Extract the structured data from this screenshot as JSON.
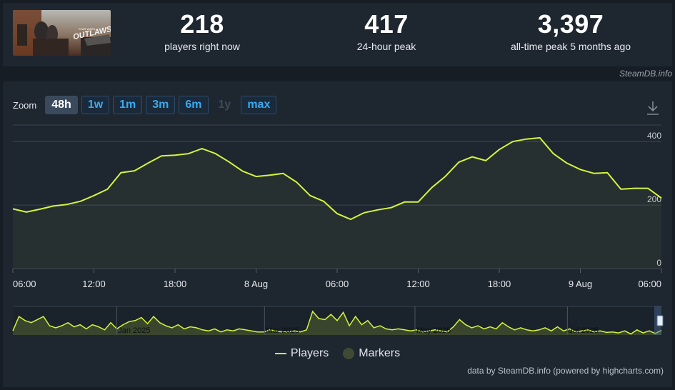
{
  "stats": [
    {
      "value": "218",
      "label": "players right now"
    },
    {
      "value": "417",
      "label": "24-hour peak"
    },
    {
      "value": "3,397",
      "label": "all-time peak 5 months ago"
    }
  ],
  "credit_top": "SteamDB.info",
  "zoom": {
    "label": "Zoom",
    "buttons": [
      {
        "label": "48h",
        "state": "active"
      },
      {
        "label": "1w",
        "state": "normal"
      },
      {
        "label": "1m",
        "state": "normal"
      },
      {
        "label": "3m",
        "state": "normal"
      },
      {
        "label": "6m",
        "state": "normal"
      },
      {
        "label": "1y",
        "state": "disabled"
      },
      {
        "label": "max",
        "state": "normal"
      }
    ]
  },
  "legend": {
    "players": "Players",
    "markers": "Markers"
  },
  "credit_bottom": "data by SteamDB.info (powered by highcharts.com)",
  "colors": {
    "line": "#d4f53c",
    "background": "#1e2630",
    "accent": "#3aaaf0"
  },
  "icons": {
    "download": "download-icon"
  },
  "chart_data": {
    "type": "line",
    "series": [
      {
        "name": "Players",
        "x": [
          0,
          1,
          2,
          3,
          4,
          5,
          6,
          7,
          8,
          9,
          10,
          11,
          12,
          13,
          14,
          15,
          16,
          17,
          18,
          19,
          20,
          21,
          22,
          23,
          24,
          25,
          26,
          27,
          28,
          29,
          30,
          31,
          32,
          33,
          34,
          35,
          36,
          37,
          38,
          39,
          40,
          41,
          42,
          43,
          44,
          45,
          46,
          47,
          48
        ],
        "values": [
          188,
          178,
          187,
          197,
          202,
          212,
          230,
          250,
          302,
          308,
          332,
          355,
          357,
          362,
          378,
          362,
          336,
          307,
          290,
          294,
          300,
          272,
          230,
          212,
          173,
          155,
          176,
          185,
          192,
          210,
          210,
          255,
          290,
          335,
          352,
          340,
          375,
          400,
          408,
          412,
          362,
          332,
          312,
          300,
          302,
          250,
          253,
          253,
          222
        ]
      }
    ],
    "x_tick_labels": [
      "06:00",
      "12:00",
      "18:00",
      "8 Aug",
      "06:00",
      "12:00",
      "18:00",
      "9 Aug",
      "06:00"
    ],
    "x_tick_positions": [
      0,
      6,
      12,
      18,
      24,
      30,
      36,
      42,
      48
    ],
    "y_tick_labels": [
      "0",
      "200",
      "400"
    ],
    "ylim": [
      0,
      450
    ],
    "grid": true,
    "legend": "bottom-center",
    "navigator": {
      "labels": [
        "Jan 2025",
        "Mar 2025",
        "May 2025",
        "Jul 2025"
      ],
      "values": [
        8,
        36,
        28,
        24,
        30,
        36,
        18,
        14,
        18,
        24,
        16,
        20,
        12,
        20,
        16,
        10,
        24,
        12,
        20,
        26,
        28,
        34,
        22,
        36,
        24,
        18,
        14,
        20,
        12,
        16,
        14,
        10,
        8,
        12,
        6,
        10,
        8,
        12,
        10,
        8,
        6,
        6,
        10,
        8,
        6,
        6,
        8,
        6,
        10,
        46,
        32,
        30,
        40,
        28,
        44,
        18,
        36,
        20,
        28,
        14,
        18,
        12,
        10,
        12,
        10,
        8,
        10,
        6,
        8,
        10,
        8,
        6,
        16,
        30,
        20,
        14,
        18,
        12,
        16,
        12,
        24,
        16,
        10,
        14,
        10,
        8,
        10,
        14,
        8,
        16,
        8,
        12,
        6,
        8,
        10,
        6,
        8,
        5,
        6,
        4,
        8,
        2,
        10,
        4,
        8,
        3,
        9
      ]
    }
  }
}
